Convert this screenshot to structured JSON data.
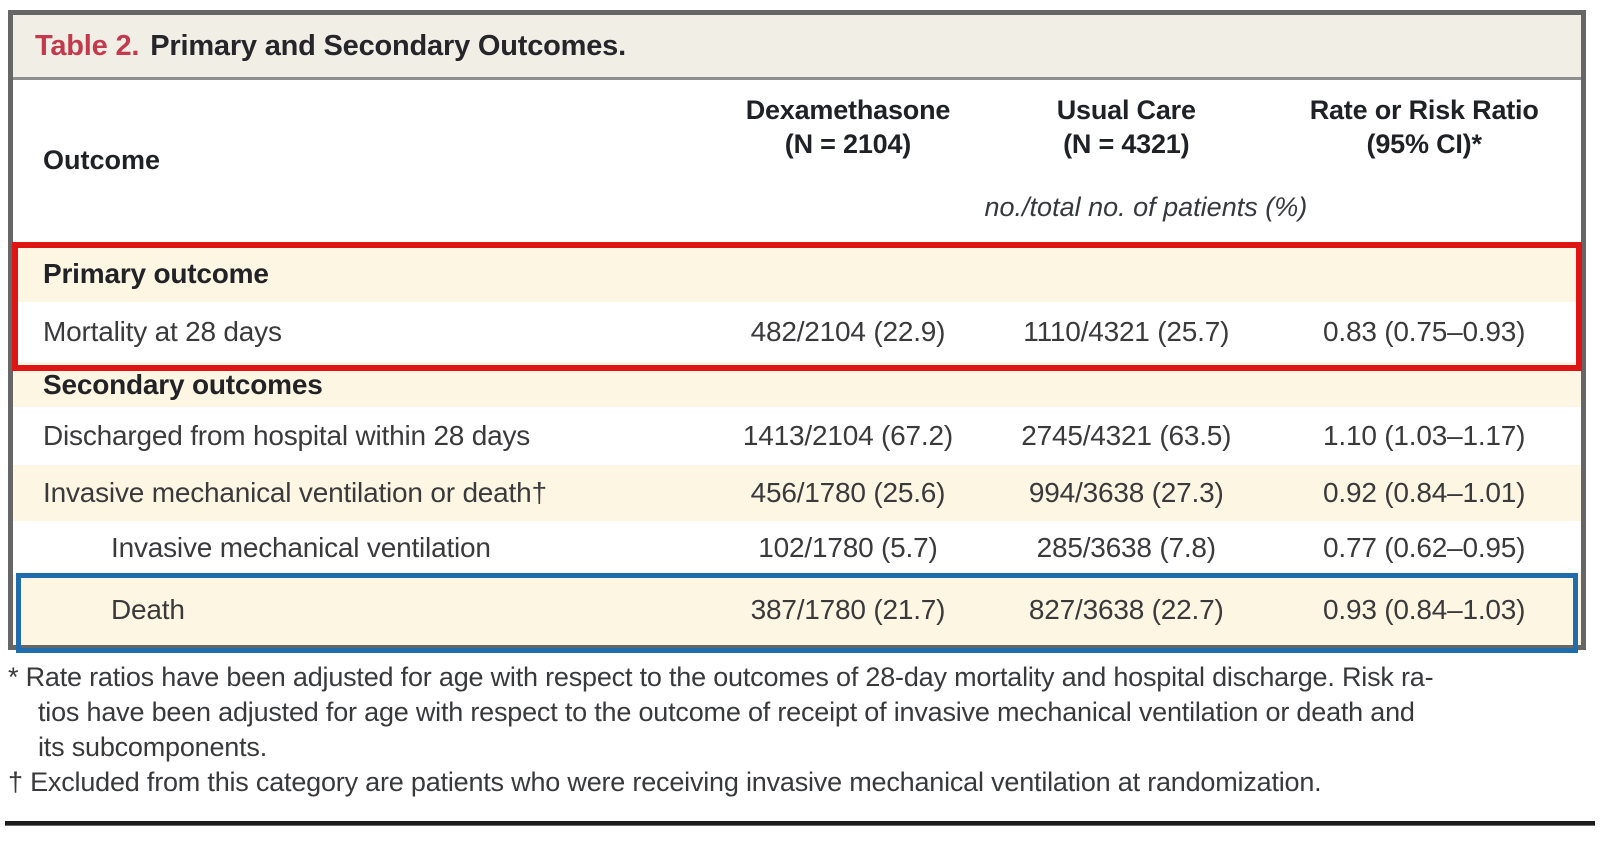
{
  "title": {
    "label": "Table 2.",
    "text": "Primary and Secondary Outcomes."
  },
  "columns": {
    "outcome": "Outcome",
    "dexamethasone_line1": "Dexamethasone",
    "dexamethasone_line2": "(N = 2104)",
    "usual_care_line1": "Usual Care",
    "usual_care_line2": "(N = 4321)",
    "ratio_line1": "Rate or Risk Ratio",
    "ratio_line2": "(95% CI)*"
  },
  "units_note": "no./total no. of patients (%)",
  "rows": [
    {
      "label": "Primary outcome",
      "section": true,
      "indent": false,
      "dexamethasone": "",
      "usual_care": "",
      "ratio": ""
    },
    {
      "label": "Mortality at 28 days",
      "section": false,
      "indent": false,
      "dexamethasone": "482/2104 (22.9)",
      "usual_care": "1110/4321 (25.7)",
      "ratio": "0.83 (0.75–0.93)"
    },
    {
      "label": "Secondary outcomes",
      "section": true,
      "indent": false,
      "dexamethasone": "",
      "usual_care": "",
      "ratio": ""
    },
    {
      "label": "Discharged from hospital within 28 days",
      "section": false,
      "indent": false,
      "dexamethasone": "1413/2104 (67.2)",
      "usual_care": "2745/4321 (63.5)",
      "ratio": "1.10 (1.03–1.17)"
    },
    {
      "label": "Invasive mechanical ventilation or death†",
      "section": false,
      "indent": false,
      "dexamethasone": "456/1780 (25.6)",
      "usual_care": "994/3638 (27.3)",
      "ratio": "0.92 (0.84–1.01)"
    },
    {
      "label": "Invasive mechanical ventilation",
      "section": false,
      "indent": true,
      "dexamethasone": "102/1780 (5.7)",
      "usual_care": "285/3638 (7.8)",
      "ratio": "0.77 (0.62–0.95)"
    },
    {
      "label": "Death",
      "section": false,
      "indent": true,
      "dexamethasone": "387/1780 (21.7)",
      "usual_care": "827/3638 (22.7)",
      "ratio": "0.93 (0.84–1.03)"
    }
  ],
  "footnotes": [
    {
      "text": "* Rate ratios have been adjusted for age with respect to the outcomes of 28-day mortality and hospital discharge. Risk ra-",
      "indent": false
    },
    {
      "text": "tios have been adjusted for age with respect to the outcome of receipt of invasive mechanical ventilation or death and",
      "indent": true
    },
    {
      "text": "its subcomponents.",
      "indent": true
    },
    {
      "text": "† Excluded from this category are patients who were receiving invasive mechanical ventilation at randomization.",
      "indent": false
    }
  ],
  "colors": {
    "title_label_red": "#c23a4c",
    "highlight_red": "#df1414",
    "highlight_blue": "#1f6dad",
    "row_cream": "#fdf6e3",
    "titlebar_bg": "#f1eee6",
    "border_gray": "#666666"
  }
}
